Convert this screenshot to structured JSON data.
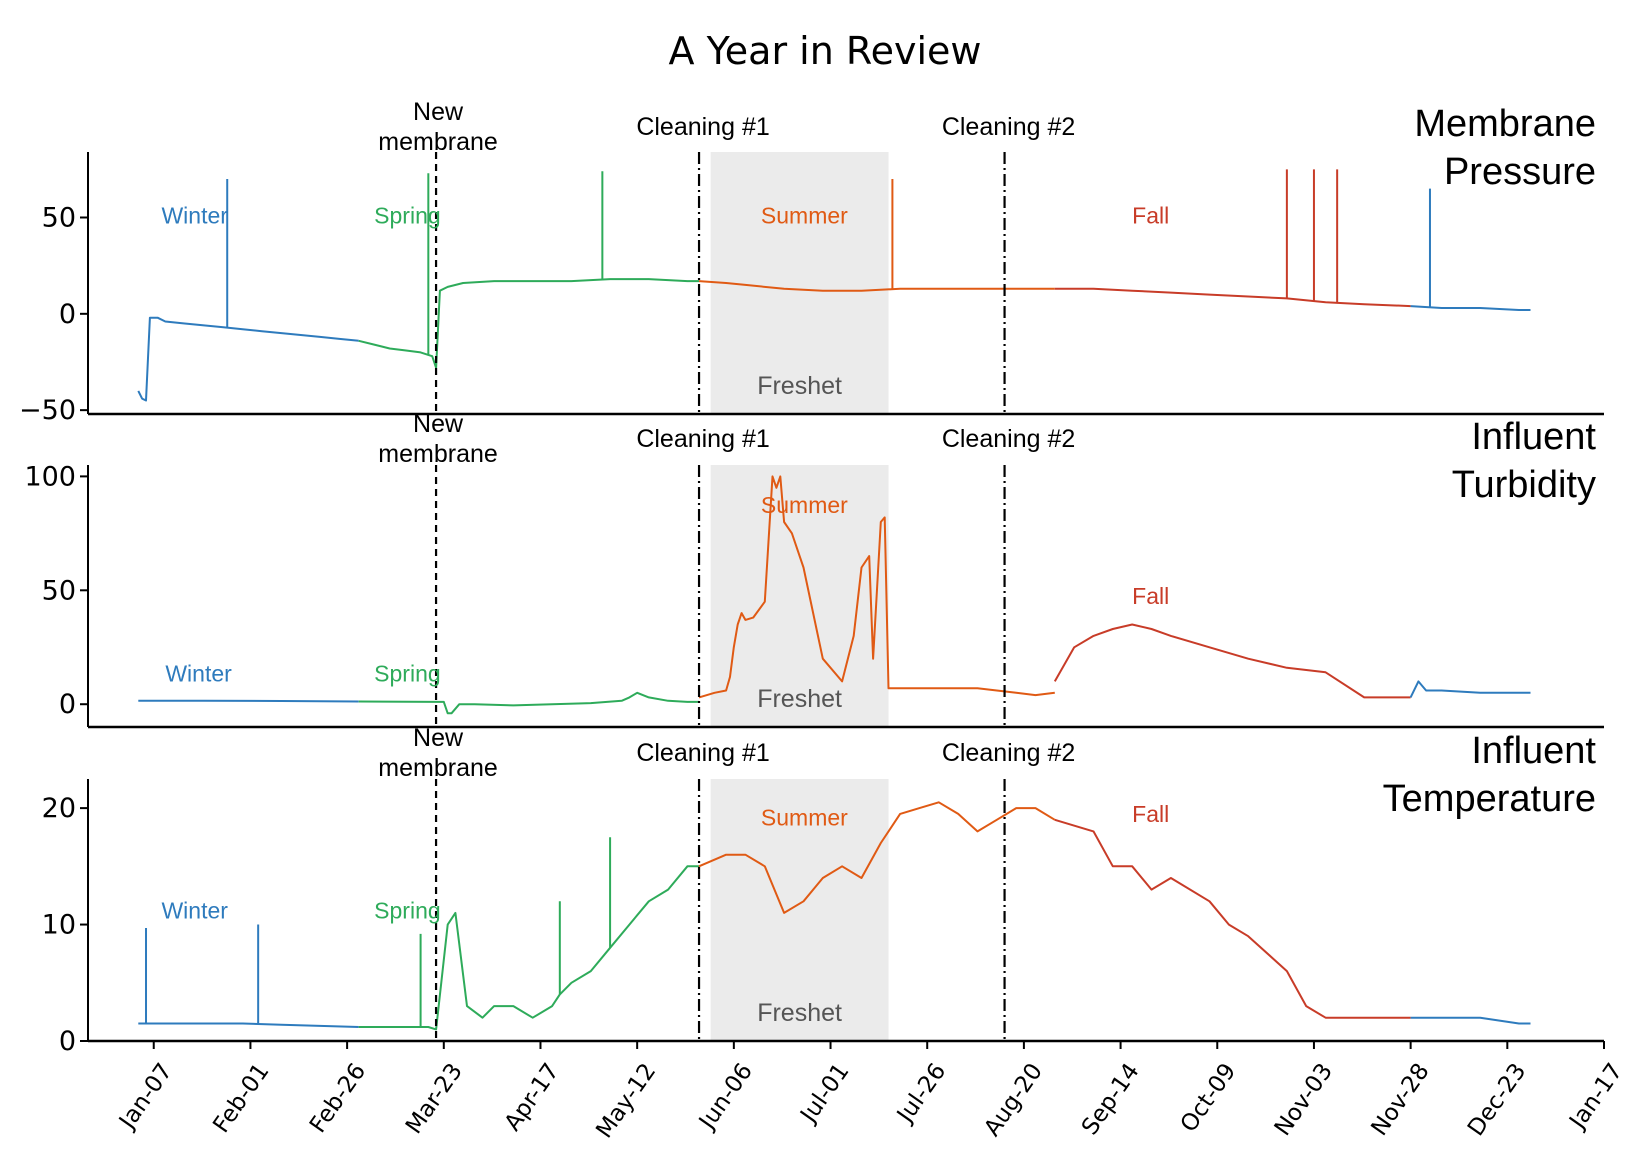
{
  "title": "A Year in Review",
  "colors": {
    "Winter": "#2e7bbd",
    "Spring": "#2eab5a",
    "Summer": "#e05a14",
    "Fall": "#c83c28",
    "freshet": "#ebebeb",
    "axis": "#000000"
  },
  "chart_data": {
    "type": "line",
    "title": "A Year in Review",
    "x_tick_labels": [
      "Jan-07",
      "Feb-01",
      "Feb-26",
      "Mar-23",
      "Apr-17",
      "May-12",
      "Jun-06",
      "Jul-01",
      "Jul-26",
      "Aug-20",
      "Sep-14",
      "Oct-09",
      "Nov-03",
      "Nov-28",
      "Dec-23",
      "Jan-17"
    ],
    "x_range_day_of_year": [
      -10,
      382
    ],
    "x_ticks_day_of_year": [
      7,
      32,
      57,
      82,
      107,
      132,
      157,
      182,
      207,
      232,
      257,
      282,
      307,
      332,
      357,
      382
    ],
    "events": [
      {
        "name": "New membrane",
        "lines": [
          "New",
          "membrane"
        ],
        "day_of_year": 80,
        "style": "dashed"
      },
      {
        "name": "Cleaning #1",
        "lines": [
          "Cleaning #1"
        ],
        "day_of_year": 148,
        "style": "dashdot"
      },
      {
        "name": "Cleaning #2",
        "lines": [
          "Cleaning #2"
        ],
        "day_of_year": 227,
        "style": "dashdot"
      }
    ],
    "freshet": {
      "label": "Freshet",
      "start_day_of_year": 151,
      "end_day_of_year": 197
    },
    "panels": [
      {
        "label": [
          "Membrane",
          "Pressure"
        ],
        "ylim": [
          -52,
          84
        ],
        "yticks": [
          -50,
          0,
          50
        ],
        "ytick_labels": [
          "−50",
          "0",
          "50"
        ],
        "season_labels": [
          {
            "text": "Winter",
            "season": "Winter",
            "day_of_year": 9,
            "y": 47
          },
          {
            "text": "Spring",
            "season": "Spring",
            "day_of_year": 64,
            "y": 47
          },
          {
            "text": "Summer",
            "season": "Summer",
            "day_of_year": 164,
            "y": 47
          },
          {
            "text": "Fall",
            "season": "Fall",
            "day_of_year": 260,
            "y": 47
          }
        ],
        "series": [
          {
            "season": "Winter",
            "x": [
              3,
              4,
              5,
              6,
              8,
              10,
              15,
              20,
              25,
              30,
              35,
              40,
              45,
              50,
              55,
              60
            ],
            "y": [
              -40,
              -44,
              -45,
              -2,
              -2,
              -4,
              -5,
              -6,
              -7,
              -8,
              -9,
              -10,
              -11,
              -12,
              -13,
              -14
            ]
          },
          {
            "season": "Spring",
            "x": [
              60,
              64,
              68,
              72,
              76,
              79,
              80,
              81,
              83,
              87,
              95,
              105,
              115,
              125,
              135,
              145,
              148
            ],
            "y": [
              -14,
              -16,
              -18,
              -19,
              -20,
              -22,
              -28,
              12,
              14,
              16,
              17,
              17,
              17,
              18,
              18,
              17,
              17
            ]
          },
          {
            "season": "Summer",
            "x": [
              148,
              155,
              160,
              170,
              180,
              190,
              200,
              210,
              220,
              227,
              235,
              240
            ],
            "y": [
              17,
              16,
              15,
              13,
              12,
              12,
              13,
              13,
              13,
              13,
              13,
              13
            ]
          },
          {
            "season": "Fall",
            "x": [
              240,
              250,
              260,
              270,
              280,
              290,
              300,
              310,
              320,
              332
            ],
            "y": [
              13,
              13,
              12,
              11,
              10,
              9,
              8,
              6,
              5,
              4
            ]
          },
          {
            "season": "Winter",
            "x": [
              332,
              340,
              350,
              360,
              363
            ],
            "y": [
              4,
              3,
              3,
              2,
              2
            ]
          }
        ],
        "spikes": [
          {
            "season": "Winter",
            "day_of_year": 26,
            "y": 70
          },
          {
            "season": "Spring",
            "day_of_year": 78,
            "y": 73
          },
          {
            "season": "Spring",
            "day_of_year": 123,
            "y": 74
          },
          {
            "season": "Summer",
            "day_of_year": 198,
            "y": 70
          },
          {
            "season": "Fall",
            "day_of_year": 300,
            "y": 75
          },
          {
            "season": "Fall",
            "day_of_year": 307,
            "y": 75
          },
          {
            "season": "Fall",
            "day_of_year": 313,
            "y": 75
          },
          {
            "season": "Winter",
            "day_of_year": 337,
            "y": 65
          }
        ]
      },
      {
        "label": [
          "Influent",
          "Turbidity"
        ],
        "ylim": [
          -10,
          105
        ],
        "yticks": [
          0,
          50,
          100
        ],
        "ytick_labels": [
          "0",
          "50",
          "100"
        ],
        "season_labels": [
          {
            "text": "Winter",
            "season": "Winter",
            "day_of_year": 10,
            "y": 10
          },
          {
            "text": "Spring",
            "season": "Spring",
            "day_of_year": 64,
            "y": 10
          },
          {
            "text": "Summer",
            "season": "Summer",
            "day_of_year": 164,
            "y": 84
          },
          {
            "text": "Fall",
            "season": "Fall",
            "day_of_year": 260,
            "y": 44
          }
        ],
        "series": [
          {
            "season": "Winter",
            "x": [
              3,
              20,
              40,
              60
            ],
            "y": [
              1.5,
              1.5,
              1.4,
              1.2
            ]
          },
          {
            "season": "Spring",
            "x": [
              60,
              80,
              82,
              83,
              84,
              86,
              90,
              100,
              110,
              120,
              128,
              130,
              132,
              135,
              140,
              145,
              148
            ],
            "y": [
              1.2,
              1,
              1,
              -4,
              -4,
              0,
              0,
              -0.5,
              0,
              0.5,
              1.5,
              3,
              5,
              3,
              1.5,
              1,
              1
            ]
          },
          {
            "season": "Summer",
            "x": [
              148,
              152,
              155,
              156,
              157,
              158,
              159,
              160,
              162,
              165,
              167,
              168,
              169,
              170,
              172,
              175,
              180,
              185,
              188,
              190,
              192,
              193,
              195,
              196,
              197,
              205,
              210,
              215,
              220,
              225,
              230,
              235,
              240
            ],
            "y": [
              3,
              5,
              6,
              12,
              25,
              35,
              40,
              37,
              38,
              45,
              100,
              95,
              100,
              80,
              75,
              60,
              20,
              10,
              30,
              60,
              65,
              20,
              80,
              82,
              7,
              7,
              7,
              7,
              7,
              6,
              5,
              4,
              5
            ]
          },
          {
            "season": "Fall",
            "x": [
              240,
              245,
              250,
              255,
              260,
              265,
              270,
              280,
              290,
              300,
              310,
              320,
              332
            ],
            "y": [
              10,
              25,
              30,
              33,
              35,
              33,
              30,
              25,
              20,
              16,
              14,
              3,
              3
            ]
          },
          {
            "season": "Winter",
            "x": [
              332,
              334,
              336,
              340,
              350,
              363
            ],
            "y": [
              3,
              10,
              6,
              6,
              5,
              5
            ]
          }
        ],
        "spikes": []
      },
      {
        "label": [
          "Influent",
          "Temperature"
        ],
        "ylim": [
          0,
          22.5
        ],
        "yticks": [
          0,
          10,
          20
        ],
        "ytick_labels": [
          "0",
          "10",
          "20"
        ],
        "season_labels": [
          {
            "text": "Winter",
            "season": "Winter",
            "day_of_year": 9,
            "y": 10.5
          },
          {
            "text": "Spring",
            "season": "Spring",
            "day_of_year": 64,
            "y": 10.5
          },
          {
            "text": "Summer",
            "season": "Summer",
            "day_of_year": 164,
            "y": 18.5
          },
          {
            "text": "Fall",
            "season": "Fall",
            "day_of_year": 260,
            "y": 18.8
          }
        ],
        "series": [
          {
            "season": "Winter",
            "x": [
              3,
              10,
              20,
              30,
              40,
              50,
              60
            ],
            "y": [
              1.5,
              1.5,
              1.5,
              1.5,
              1.4,
              1.3,
              1.2
            ]
          },
          {
            "season": "Spring",
            "x": [
              60,
              70,
              78,
              80,
              83,
              85,
              88,
              92,
              95,
              100,
              105,
              110,
              112,
              115,
              120,
              125,
              130,
              135,
              140,
              145,
              148
            ],
            "y": [
              1.2,
              1.2,
              1.2,
              1,
              10,
              11,
              3,
              2,
              3,
              3,
              2,
              3,
              4,
              5,
              6,
              8,
              10,
              12,
              13,
              15,
              15
            ]
          },
          {
            "season": "Summer",
            "x": [
              148,
              155,
              160,
              165,
              170,
              175,
              180,
              185,
              190,
              195,
              200,
              205,
              210,
              215,
              220,
              225,
              230,
              235,
              240
            ],
            "y": [
              15,
              16,
              16,
              15,
              11,
              12,
              14,
              15,
              14,
              17,
              19.5,
              20,
              20.5,
              19.5,
              18,
              19,
              20,
              20,
              19
            ]
          },
          {
            "season": "Fall",
            "x": [
              240,
              250,
              255,
              260,
              265,
              270,
              280,
              285,
              290,
              300,
              305,
              310,
              320,
              332
            ],
            "y": [
              19,
              18,
              15,
              15,
              13,
              14,
              12,
              10,
              9,
              6,
              3,
              2,
              2,
              2
            ]
          },
          {
            "season": "Winter",
            "x": [
              332,
              340,
              350,
              360,
              363
            ],
            "y": [
              2,
              2,
              2,
              1.5,
              1.5
            ]
          }
        ],
        "spikes": [
          {
            "season": "Winter",
            "day_of_year": 5,
            "y": 9.7
          },
          {
            "season": "Winter",
            "day_of_year": 34,
            "y": 10
          },
          {
            "season": "Spring",
            "day_of_year": 76,
            "y": 9.2
          },
          {
            "season": "Spring",
            "day_of_year": 112,
            "y": 12
          },
          {
            "season": "Spring",
            "day_of_year": 125,
            "y": 17.5
          }
        ]
      }
    ]
  }
}
